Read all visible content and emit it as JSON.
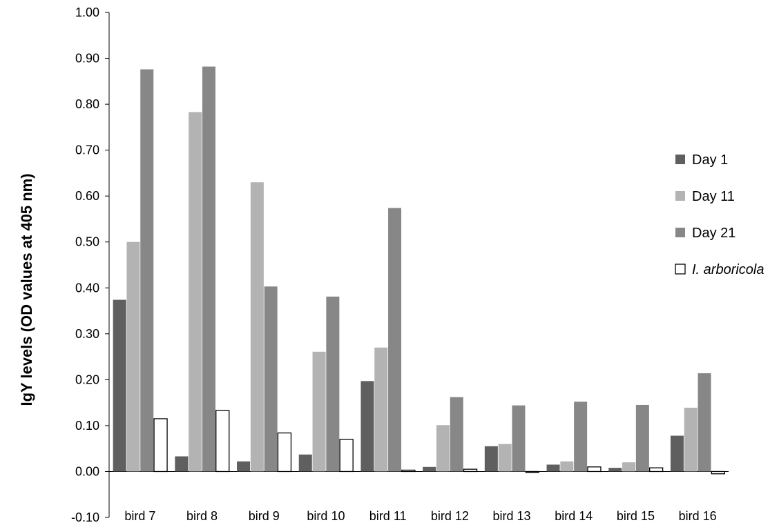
{
  "chart_data": {
    "type": "bar",
    "title": "",
    "xlabel": "",
    "ylabel": "IgY levels (OD values at 405 nm)",
    "ylim": [
      -0.1,
      1.0
    ],
    "yticks": [
      "1.00",
      "0.90",
      "0.80",
      "0.70",
      "0.60",
      "0.50",
      "0.40",
      "0.30",
      "0.20",
      "0.10",
      "0.00",
      "-0.10"
    ],
    "categories": [
      "bird 7",
      "bird 8",
      "bird 9",
      "bird 10",
      "bird 11",
      "bird 12",
      "bird 13",
      "bird 14",
      "bird 15",
      "bird 16"
    ],
    "legend_position": "right",
    "grid": false,
    "series": [
      {
        "name": "Day 1",
        "color": "#5f5f5f",
        "values": [
          0.374,
          0.033,
          0.022,
          0.037,
          0.197,
          0.01,
          0.055,
          0.015,
          0.008,
          0.078
        ]
      },
      {
        "name": "Day 11",
        "color": "#b3b3b3",
        "values": [
          0.5,
          0.783,
          0.63,
          0.261,
          0.27,
          0.101,
          0.06,
          0.022,
          0.02,
          0.139
        ]
      },
      {
        "name": "Day 21",
        "color": "#878787",
        "values": [
          0.876,
          0.882,
          0.403,
          0.381,
          0.574,
          0.162,
          0.144,
          0.152,
          0.145,
          0.214
        ]
      },
      {
        "name": "I. arboricola",
        "color": "#ffffff",
        "italic": true,
        "values": [
          0.115,
          0.133,
          0.084,
          0.07,
          0.003,
          0.005,
          -0.002,
          0.01,
          0.008,
          -0.005
        ]
      }
    ]
  }
}
